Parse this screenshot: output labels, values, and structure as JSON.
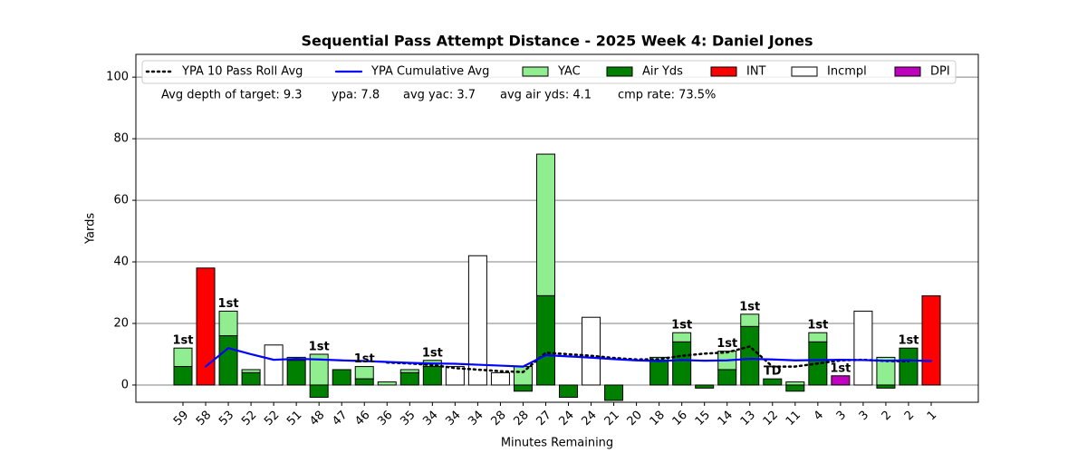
{
  "chart_data": {
    "type": "bar",
    "title": "Sequential Pass Attempt Distance - 2025 Week 4: Daniel Jones",
    "x_label": "Minutes Remaining",
    "y_label": "Yards",
    "categories": [
      "59",
      "58",
      "53",
      "52",
      "52",
      "51",
      "48",
      "47",
      "46",
      "36",
      "35",
      "34",
      "34",
      "34",
      "28",
      "28",
      "27",
      "24",
      "24",
      "21",
      "20",
      "18",
      "16",
      "15",
      "14",
      "13",
      "12",
      "11",
      "4",
      "3",
      "3",
      "2",
      "2",
      "1"
    ],
    "series": [
      {
        "name": "YAC",
        "color": "#90ee90",
        "values": [
          6,
          null,
          8,
          1,
          null,
          1,
          10,
          null,
          4,
          1,
          1,
          2,
          null,
          null,
          null,
          6,
          46,
          null,
          null,
          null,
          null,
          1,
          3,
          null,
          6,
          4,
          null,
          1,
          3,
          null,
          null,
          9,
          null,
          null
        ]
      },
      {
        "name": "Air Yds",
        "color": "#008000",
        "values": [
          6,
          null,
          16,
          4,
          null,
          8,
          -4,
          5,
          2,
          0,
          4,
          6,
          null,
          null,
          null,
          -2,
          29,
          -4,
          null,
          -5,
          0,
          8,
          14,
          -1,
          5,
          19,
          2,
          -2,
          14,
          null,
          null,
          -1,
          12,
          null
        ]
      },
      {
        "name": "INT",
        "color": "#ff0000",
        "values": [
          null,
          38,
          null,
          null,
          null,
          null,
          null,
          null,
          null,
          null,
          null,
          null,
          null,
          null,
          null,
          null,
          null,
          null,
          null,
          null,
          null,
          null,
          null,
          null,
          null,
          null,
          null,
          null,
          null,
          null,
          null,
          null,
          null,
          29
        ]
      },
      {
        "name": "Incmpl",
        "color": "#ffffff",
        "values": [
          null,
          null,
          null,
          null,
          13,
          null,
          null,
          null,
          null,
          null,
          null,
          null,
          6,
          42,
          4,
          null,
          null,
          null,
          22,
          null,
          null,
          null,
          null,
          null,
          null,
          null,
          null,
          null,
          null,
          null,
          24,
          null,
          null,
          null
        ]
      },
      {
        "name": "DPI",
        "color": "#bf00bf",
        "values": [
          null,
          null,
          null,
          null,
          null,
          null,
          null,
          null,
          null,
          null,
          null,
          null,
          null,
          null,
          null,
          null,
          null,
          null,
          null,
          null,
          null,
          null,
          null,
          null,
          null,
          null,
          null,
          null,
          null,
          3,
          null,
          null,
          null,
          null
        ]
      }
    ],
    "lines": [
      {
        "name": "YPA 10 Pass Roll Avg",
        "color": "#000000",
        "style": "dotted",
        "values": [
          null,
          null,
          null,
          null,
          null,
          null,
          null,
          null,
          null,
          7.3,
          7.0,
          6.5,
          5.5,
          5.0,
          4.5,
          4.2,
          10.5,
          10,
          9.5,
          8.8,
          8.3,
          8.4,
          9.5,
          10.2,
          10.6,
          12.5,
          6,
          6,
          7,
          8,
          8.2,
          7.8,
          7.7,
          null
        ]
      },
      {
        "name": "YPA Cumulative Avg",
        "color": "#0000ff",
        "style": "solid",
        "values": [
          null,
          6,
          12,
          10,
          8.2,
          8.5,
          8.3,
          8.0,
          7.8,
          7.5,
          7.2,
          7.0,
          6.9,
          6.6,
          6.3,
          6.0,
          9.7,
          9.3,
          8.9,
          8.4,
          8.0,
          7.8,
          8.1,
          7.9,
          8.0,
          8.5,
          8.3,
          8.0,
          8.1,
          8.2,
          8.1,
          7.9,
          8.0,
          7.8
        ]
      }
    ],
    "bar_labels": [
      "1st",
      null,
      "1st",
      null,
      null,
      null,
      "1st",
      null,
      "1st",
      null,
      null,
      "1st",
      null,
      null,
      null,
      null,
      null,
      null,
      null,
      null,
      null,
      null,
      "1st",
      null,
      "1st",
      "1st",
      "TD",
      null,
      "1st",
      "1st",
      null,
      null,
      "1st",
      null
    ],
    "stats": [
      "Avg depth of target: 9.3",
      "ypa: 7.8",
      "avg yac: 3.7",
      "avg air yds: 4.1",
      "cmp rate: 73.5%"
    ],
    "ylim": [
      -5.6,
      107.4
    ],
    "yticks": [
      0,
      20,
      40,
      60,
      80,
      100
    ],
    "grid": true
  }
}
